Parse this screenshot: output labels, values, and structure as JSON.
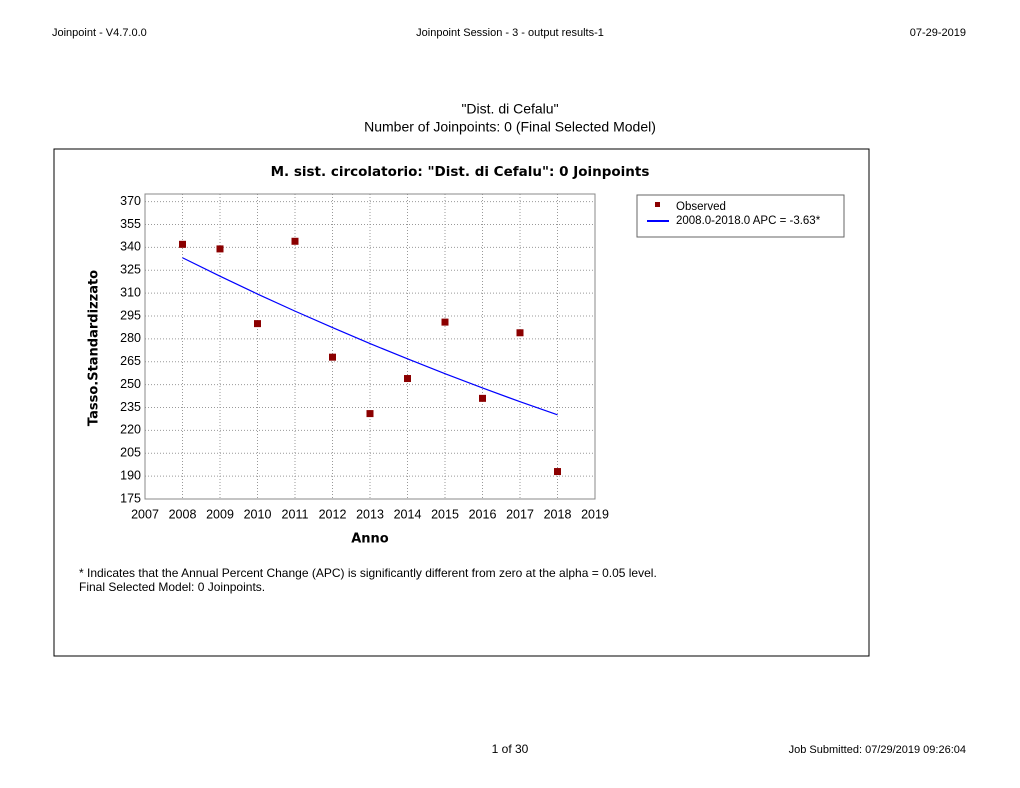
{
  "header": {
    "left": "Joinpoint - V4.7.0.0",
    "center": "Joinpoint Session - 3 - output results-1",
    "right": "07-29-2019"
  },
  "heading": [
    "\"Dist. di Cefalu\"",
    "Number of Joinpoints:  0 (Final Selected Model)"
  ],
  "chart_data": {
    "type": "scatter",
    "title": "M. sist. circolatorio: \"Dist. di Cefalu\": 0 Joinpoints",
    "x_label": "Anno",
    "y_label": "Tasso.Standardizzato",
    "x": [
      2008,
      2009,
      2010,
      2011,
      2012,
      2013,
      2014,
      2015,
      2016,
      2017,
      2018
    ],
    "series": [
      {
        "name": "Observed",
        "color": "#8b0000",
        "style": "marker",
        "values": [
          342,
          339,
          290,
          344,
          268,
          231,
          254,
          291,
          241,
          284,
          193
        ]
      },
      {
        "name": "2008.0-2018.0 APC  = -3.63*",
        "color": "#0000ff",
        "style": "line",
        "values": [
          333.2,
          321.1,
          309.4,
          298.2,
          287.4,
          276.9,
          266.9,
          257.2,
          247.8,
          238.8,
          230.2
        ]
      }
    ],
    "xlim": [
      2007,
      2019
    ],
    "xticks": [
      2007,
      2008,
      2009,
      2010,
      2011,
      2012,
      2013,
      2014,
      2015,
      2016,
      2017,
      2018,
      2019
    ],
    "ylim": [
      175,
      375
    ],
    "yticks": [
      175,
      190,
      205,
      220,
      235,
      250,
      265,
      280,
      295,
      310,
      325,
      340,
      355,
      370
    ],
    "grid": true,
    "legend": "top-right",
    "notes": [
      "* Indicates that the Annual Percent Change (APC) is significantly different from zero at the alpha = 0.05 level.",
      "Final Selected Model: 0 Joinpoints."
    ]
  },
  "footer": {
    "page": "1 of 30",
    "job": "Job Submitted:  07/29/2019 09:26:04"
  }
}
